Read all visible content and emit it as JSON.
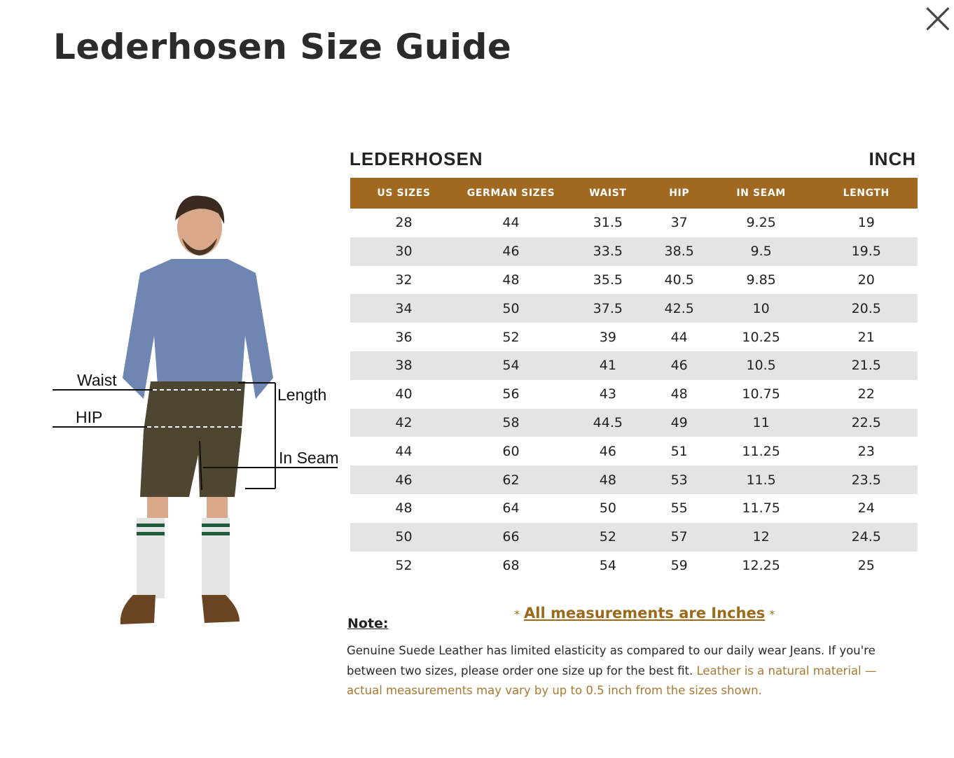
{
  "header": {
    "title": "Lederhosen Size Guide",
    "close": "×"
  },
  "figure": {
    "labels": {
      "waist": "Waist",
      "hip": "HIP",
      "length": "Length",
      "in_seam": "In Seam"
    }
  },
  "table": {
    "title": "LEDERHOSEN",
    "unit": "INCH",
    "columns": [
      "US SIZES",
      "GERMAN SIZES",
      "WAIST",
      "HIP",
      "IN SEAM",
      "LENGTH"
    ],
    "rows": [
      [
        28,
        44,
        31.5,
        37,
        9.25,
        19
      ],
      [
        30,
        46,
        33.5,
        38.5,
        9.5,
        19.5
      ],
      [
        32,
        48,
        35.5,
        40.5,
        9.85,
        20
      ],
      [
        34,
        50,
        37.5,
        42.5,
        10,
        20.5
      ],
      [
        36,
        52,
        39,
        44,
        10.25,
        21
      ],
      [
        38,
        54,
        41,
        46,
        10.5,
        21.5
      ],
      [
        40,
        56,
        43,
        48,
        10.75,
        22
      ],
      [
        42,
        58,
        44.5,
        49,
        11,
        22.5
      ],
      [
        44,
        60,
        46,
        51,
        11.25,
        23
      ],
      [
        46,
        62,
        48,
        53,
        11.5,
        23.5
      ],
      [
        48,
        64,
        50,
        55,
        11.75,
        24
      ],
      [
        50,
        66,
        52,
        57,
        12,
        24.5
      ],
      [
        52,
        68,
        54,
        59,
        12.25,
        25
      ]
    ]
  },
  "note": {
    "label": "Note:",
    "marker": "*",
    "highlight": "All measurements are Inches",
    "text": "Genuine Suede Leather has limited elasticity as compared to our daily wear Jeans. If you're between two sizes, please order one size up for the best fit.",
    "caution": "Leather is a natural material — actual measurements may vary by up to 0.5 inch from the sizes shown."
  }
}
